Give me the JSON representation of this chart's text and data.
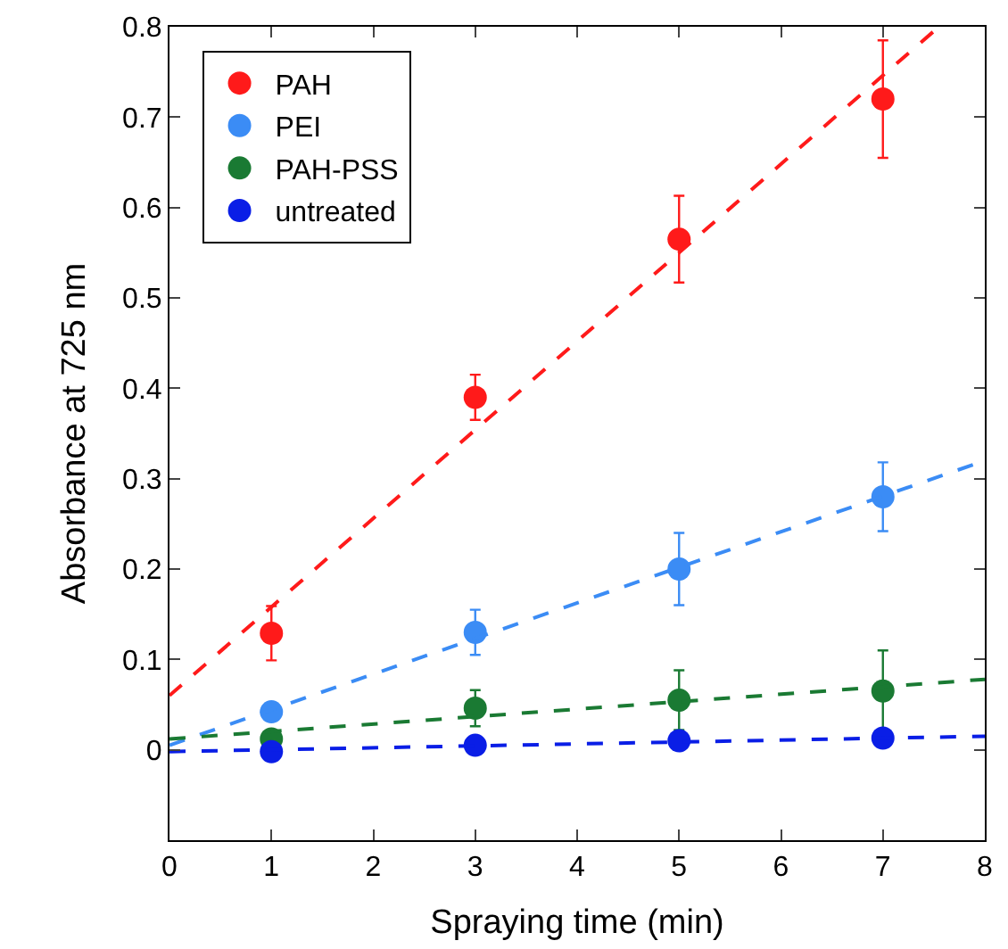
{
  "chart_data": {
    "type": "scatter",
    "xlabel": "Spraying time (min)",
    "ylabel": "Absorbance at 725 nm",
    "xlim": [
      0,
      8
    ],
    "xticks": [
      0,
      1,
      2,
      3,
      4,
      5,
      6,
      7,
      8
    ],
    "ylim": [
      -0.1,
      0.8
    ],
    "yticks": [
      0,
      0.1,
      0.2,
      0.3,
      0.4,
      0.5,
      0.6,
      0.7,
      0.8
    ],
    "legend": "top left",
    "marker": "circle",
    "series": [
      {
        "name": "PAH",
        "color": "#ff1a1a",
        "x": [
          1,
          3,
          5,
          7
        ],
        "values": [
          0.129,
          0.39,
          0.565,
          0.72
        ],
        "errors": [
          0.03,
          0.025,
          0.048,
          0.065
        ]
      },
      {
        "name": "PEI",
        "color": "#3b8cf5",
        "x": [
          1,
          3,
          5,
          7
        ],
        "values": [
          0.042,
          0.13,
          0.2,
          0.28
        ],
        "errors": [
          null,
          0.025,
          0.04,
          0.038
        ]
      },
      {
        "name": "PAH-PSS",
        "color": "#1a7a33",
        "x": [
          1,
          3,
          5,
          7
        ],
        "values": [
          0.012,
          0.046,
          0.055,
          0.065
        ],
        "errors": [
          null,
          0.02,
          0.033,
          0.045
        ]
      },
      {
        "name": "untreated",
        "color": "#0a1ee6",
        "x": [
          1,
          3,
          5,
          7
        ],
        "values": [
          -0.002,
          0.005,
          0.01,
          0.013
        ]
      },
      {
        "type": "line",
        "color": "#ff1a1a",
        "line_style": "dashed",
        "marker": "none",
        "x": [
          0,
          7.55
        ],
        "values": [
          0.06,
          0.8
        ]
      },
      {
        "type": "line",
        "color": "#3b8cf5",
        "line_style": "dashed",
        "marker": "none",
        "x": [
          0,
          8
        ],
        "values": [
          0.005,
          0.32
        ]
      },
      {
        "type": "line",
        "color": "#1a7a33",
        "line_style": "dashed",
        "marker": "none",
        "x": [
          0,
          8
        ],
        "values": [
          0.012,
          0.078
        ]
      },
      {
        "type": "line",
        "color": "#0a1ee6",
        "line_style": "dashed",
        "marker": "none",
        "x": [
          0,
          8
        ],
        "values": [
          -0.002,
          0.015
        ]
      }
    ]
  }
}
